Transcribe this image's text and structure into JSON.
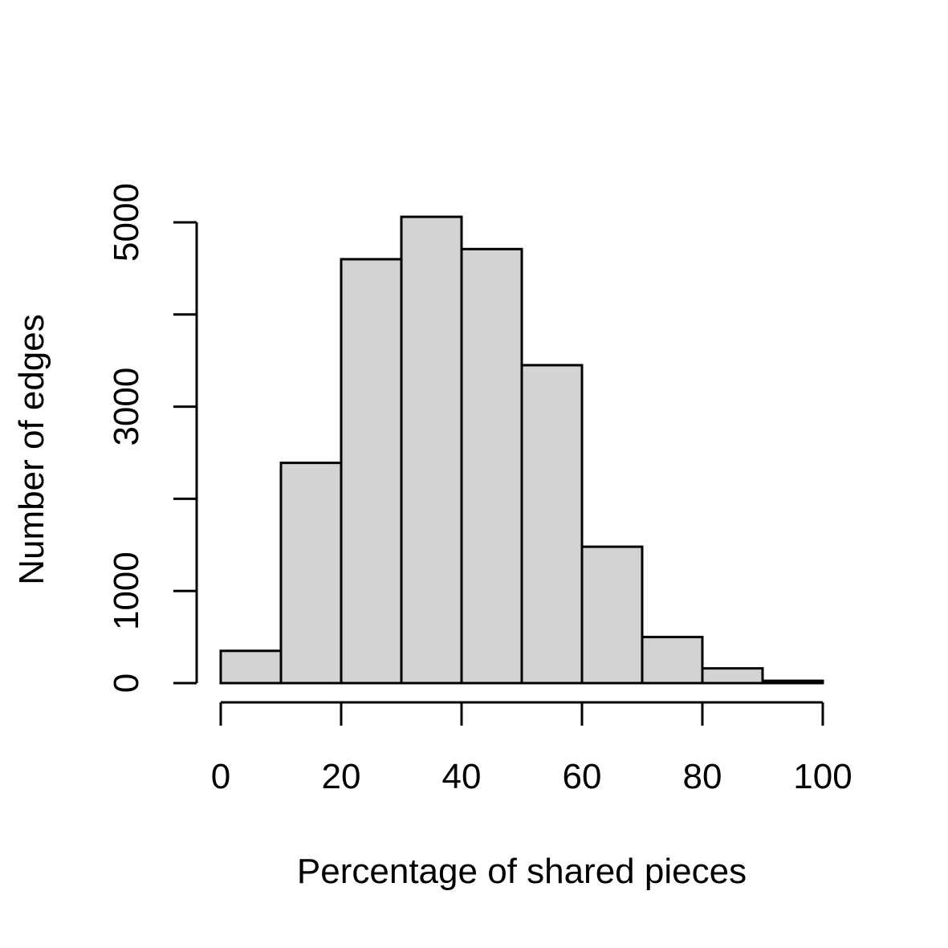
{
  "chart_data": {
    "type": "bar",
    "title": "",
    "xlabel": "Percentage of shared pieces",
    "ylabel": "Number of edges",
    "bins": [
      {
        "x0": 0,
        "x1": 10,
        "count": 350
      },
      {
        "x0": 10,
        "x1": 20,
        "count": 2390
      },
      {
        "x0": 20,
        "x1": 30,
        "count": 4600
      },
      {
        "x0": 30,
        "x1": 40,
        "count": 5060
      },
      {
        "x0": 40,
        "x1": 50,
        "count": 4710
      },
      {
        "x0": 50,
        "x1": 60,
        "count": 3450
      },
      {
        "x0": 60,
        "x1": 70,
        "count": 1480
      },
      {
        "x0": 70,
        "x1": 80,
        "count": 500
      },
      {
        "x0": 80,
        "x1": 90,
        "count": 160
      },
      {
        "x0": 90,
        "x1": 100,
        "count": 25
      }
    ],
    "xticks": [
      0,
      20,
      40,
      60,
      80,
      100
    ],
    "xtick_labels": [
      "0",
      "20",
      "40",
      "60",
      "80",
      "100"
    ],
    "yticks": [
      0,
      1000,
      2000,
      3000,
      4000,
      5000
    ],
    "ytick_labels": [
      "0",
      "1000",
      "",
      "3000",
      "",
      "5000"
    ],
    "xlim": [
      0,
      100
    ],
    "ylim": [
      0,
      5000
    ],
    "bar_color": "#d3d3d3",
    "edge_color": "#000000",
    "grid": false
  }
}
